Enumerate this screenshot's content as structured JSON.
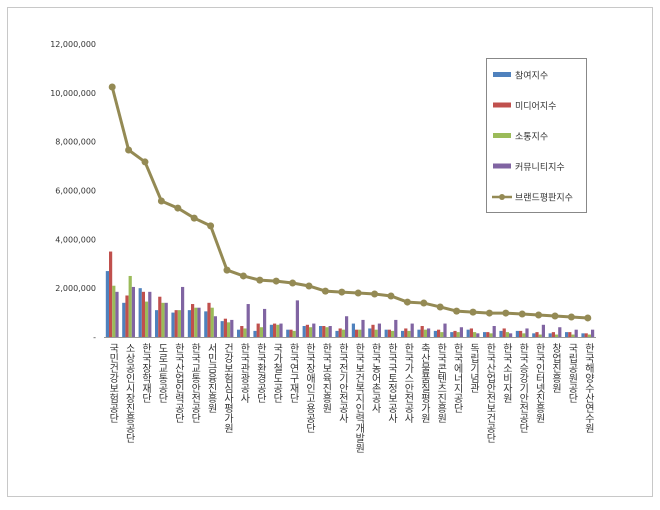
{
  "chart_data": {
    "type": "bar",
    "categories": [
      "국민건강보험공단",
      "소상공인시장진흥공단",
      "한국장학재단",
      "도로교통공단",
      "한국산업인력공단",
      "한국교통안전공단",
      "서민금융진흥원",
      "건강보험심사평가원",
      "한국관광공사",
      "한국환경공단",
      "국가철도공단",
      "한국연구재단",
      "한국장애인고용공단",
      "한국보육진흥원",
      "한국전기안전공사",
      "한국보건복지인력개발원",
      "한국농어촌공사",
      "한국국토정보공사",
      "한국가스안전공사",
      "축산물품질평가원",
      "한국콘텐츠진흥원",
      "한국에너지공단",
      "독립기념관",
      "한국산업안전보건공단",
      "한국소비자원",
      "한국승강기안전공단",
      "한국인터넷진흥원",
      "창업진흥원",
      "국립공원공단",
      "한국해양수산연수원"
    ],
    "series": [
      {
        "name": "참여지수",
        "color": "#4f81bd",
        "type": "bar",
        "values": [
          2700000,
          1400000,
          2000000,
          1100000,
          1000000,
          1100000,
          1050000,
          650000,
          300000,
          250000,
          500000,
          300000,
          450000,
          450000,
          250000,
          550000,
          350000,
          300000,
          250000,
          300000,
          250000,
          200000,
          300000,
          200000,
          250000,
          250000,
          150000,
          150000,
          200000,
          150000
        ]
      },
      {
        "name": "미디어지수",
        "color": "#c0504d",
        "type": "bar",
        "values": [
          3500000,
          1700000,
          1850000,
          1650000,
          1100000,
          1350000,
          1400000,
          750000,
          450000,
          550000,
          550000,
          300000,
          500000,
          450000,
          350000,
          300000,
          500000,
          300000,
          350000,
          450000,
          300000,
          250000,
          350000,
          200000,
          350000,
          250000,
          200000,
          200000,
          200000,
          150000
        ]
      },
      {
        "name": "소통지수",
        "color": "#9bbb59",
        "type": "bar",
        "values": [
          2100000,
          2500000,
          1450000,
          1400000,
          1100000,
          1200000,
          1200000,
          600000,
          350000,
          400000,
          500000,
          250000,
          400000,
          400000,
          300000,
          300000,
          300000,
          250000,
          250000,
          300000,
          200000,
          200000,
          200000,
          150000,
          200000,
          150000,
          100000,
          100000,
          100000,
          100000
        ]
      },
      {
        "name": "커뮤니티지수",
        "color": "#8064a2",
        "type": "bar",
        "values": [
          1850000,
          2050000,
          1850000,
          1400000,
          2050000,
          1200000,
          850000,
          700000,
          1350000,
          1150000,
          550000,
          1500000,
          550000,
          450000,
          850000,
          700000,
          550000,
          700000,
          550000,
          350000,
          550000,
          400000,
          150000,
          450000,
          150000,
          350000,
          500000,
          400000,
          300000,
          300000
        ]
      },
      {
        "name": "브랜드평판지수",
        "color": "#948a54",
        "type": "line",
        "values": [
          10240000,
          7660000,
          7170000,
          5570000,
          5280000,
          4870000,
          4550000,
          2740000,
          2500000,
          2330000,
          2290000,
          2210000,
          2090000,
          1880000,
          1840000,
          1800000,
          1760000,
          1680000,
          1430000,
          1390000,
          1230000,
          1060000,
          1020000,
          980000,
          980000,
          940000,
          900000,
          860000,
          820000,
          780000
        ]
      }
    ],
    "ylim": [
      0,
      12000000
    ],
    "yticks": [
      {
        "value": 0,
        "label": "-"
      },
      {
        "value": 2000000,
        "label": "2,000,000"
      },
      {
        "value": 4000000,
        "label": "4,000,000"
      },
      {
        "value": 6000000,
        "label": "6,000,000"
      },
      {
        "value": 8000000,
        "label": "8,000,000"
      },
      {
        "value": 10000000,
        "label": "10,000,000"
      },
      {
        "value": 12000000,
        "label": "12,000,000"
      }
    ],
    "grid": false
  }
}
